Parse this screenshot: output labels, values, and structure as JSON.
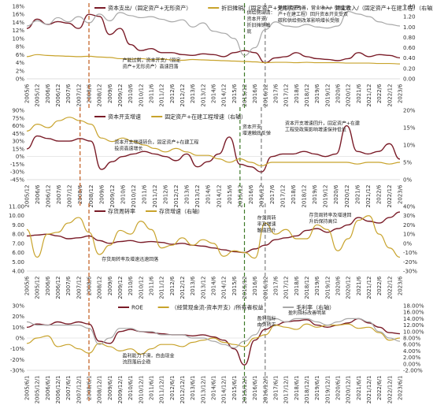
{
  "chart_data": [
    {
      "type": "line",
      "id": "p1",
      "x_labels": [
        "2005/6",
        "2005/12",
        "2006/6",
        "2006/12",
        "2007/6",
        "2007/12",
        "2008/6",
        "2008/12",
        "2009/6",
        "2009/12",
        "2010/6",
        "2010/12",
        "2011/6",
        "2011/12",
        "2012/6",
        "2012/12",
        "2013/6",
        "2013/12",
        "2014/6",
        "2014/12",
        "2015/6",
        "2015/12",
        "2016/6",
        "2016/12",
        "2017/6",
        "2017/12",
        "2018/6",
        "2018/12",
        "2019/6",
        "2019/12",
        "2020/6",
        "2020/12",
        "2021/6",
        "2021/12",
        "2022/6",
        "2022/12",
        "2023/6"
      ],
      "y_left": {
        "ticks": [
          "0%",
          "2%",
          "4%",
          "6%",
          "8%",
          "10%",
          "12%",
          "14%",
          "16%",
          "18%"
        ],
        "range": [
          0,
          18
        ]
      },
      "y_right": {
        "ticks": [
          "0.00",
          "0.20",
          "0.40",
          "0.60",
          "0.80",
          "1.00",
          "1.20",
          "1.40"
        ],
        "range": [
          0,
          1.4
        ]
      },
      "series": [
        {
          "name": "资本支出/（固定资产+无形资产）",
          "axis": "left",
          "color": "#7a1c28",
          "width": 1.4,
          "values": [
            12.5,
            14.8,
            13.5,
            14.2,
            13.8,
            12.5,
            16.0,
            15.5,
            11.0,
            12.5,
            8.5,
            7.0,
            7.5,
            6.5,
            6.5,
            6.0,
            5.8,
            6.2,
            6.0,
            5.5,
            6.5,
            7.0,
            6.5,
            4.0,
            5.2,
            5.5,
            6.5,
            5.5,
            5.0,
            4.8,
            4.5,
            5.0,
            6.5,
            5.5,
            6.0,
            5.8,
            5.2
          ]
        },
        {
          "name": "折旧摊销/（固定资产+无形资产）",
          "axis": "left",
          "color": "#c8a32c",
          "width": 1.2,
          "values": [
            5.5,
            6.0,
            5.8,
            5.7,
            5.6,
            5.5,
            5.6,
            5.4,
            5.3,
            5.0,
            4.9,
            5.0,
            4.8,
            4.9,
            4.7,
            4.6,
            4.8,
            4.7,
            4.6,
            4.5,
            4.4,
            4.3,
            4.2,
            4.0,
            4.1,
            4.1,
            4.0,
            4.1,
            4.0,
            4.0,
            4.0,
            3.9,
            3.9,
            3.9,
            3.8,
            3.8,
            3.7
          ]
        },
        {
          "name": "营业收入/（固定资产+在建工程）",
          "axis": "right",
          "color": "#a8a8a8",
          "width": 1.2,
          "values": [
            1.02,
            1.12,
            1.05,
            1.18,
            1.1,
            1.2,
            1.08,
            1.25,
            1.12,
            1.28,
            1.22,
            1.18,
            1.2,
            1.15,
            1.1,
            1.14,
            1.0,
            1.08,
            0.92,
            0.88,
            0.78,
            0.45,
            0.6,
            0.95,
            1.1,
            1.02,
            1.0,
            1.05,
            1.0,
            0.98,
            1.02,
            1.3,
            1.25,
            1.2,
            1.1,
            1.05,
            1.02
          ]
        }
      ],
      "dashed": [
        {
          "x": "2008/6",
          "color": "#c05a1c"
        },
        {
          "x": "2015/12",
          "color": "#3f7a2a"
        },
        {
          "x": "2016/12",
          "color": "#7f7f7f"
        }
      ],
      "legend": [
        {
          "label": "资本支出/（固定资产+无形资产）",
          "color": "#7a1c28"
        },
        {
          "label": "折旧摊销/（固定资产+无形资产）",
          "color": "#c8a32c"
        },
        {
          "label": "营业收入/（固定资产+在建工程）（右轴）",
          "color": "#a8a8a8"
        }
      ],
      "annotations": [
        {
          "lines": [
            "产能过剩，资本开支/（固定",
            "资产+无形资产）高速回落"
          ],
          "x": "2009/12",
          "y": 4.2
        },
        {
          "lines": [
            "供给侧出清：",
            "资本开支/",
            "折旧摊销触",
            "底"
          ],
          "x": "2015/12",
          "y": 16.0
        },
        {
          "lines": [
            "供给状况改善，营业收入/（固定资",
            "产+在建工程）回升资本开支受双",
            "碳和供给侧改革影响增长受限"
          ],
          "x": "2017/6",
          "y": 17.2
        }
      ]
    },
    {
      "type": "line",
      "id": "p2",
      "x_labels": [
        "2005/12",
        "2006/6",
        "2006/12",
        "2007/6",
        "2007/12",
        "2008/6",
        "2008/12",
        "2009/6",
        "2009/12",
        "2010/6",
        "2010/12",
        "2011/6",
        "2011/12",
        "2012/6",
        "2012/12",
        "2013/6",
        "2013/12",
        "2014/6",
        "2014/12",
        "2015/6",
        "2015/12",
        "2016/6",
        "2016/12",
        "2017/6",
        "2017/12",
        "2018/6",
        "2018/12",
        "2019/6",
        "2019/12",
        "2020/6",
        "2020/12",
        "2021/6",
        "2021/12",
        "2022/6",
        "2022/12",
        "2023/6"
      ],
      "y_left": {
        "ticks": [
          "-45%",
          "-30%",
          "-15%",
          "0%",
          "15%",
          "30%",
          "45%",
          "60%",
          "75%",
          "90%"
        ],
        "range": [
          -45,
          90
        ]
      },
      "y_right": {
        "ticks": [
          "0%",
          "5%",
          "10%",
          "15%",
          "20%"
        ],
        "range": [
          0,
          20
        ]
      },
      "series": [
        {
          "name": "资本开支增速",
          "axis": "left",
          "color": "#7a1c28",
          "width": 1.4,
          "values": [
            15,
            40,
            35,
            30,
            30,
            35,
            30,
            -25,
            -10,
            0,
            5,
            10,
            5,
            0,
            -8,
            5,
            -20,
            -10,
            5,
            38,
            -15,
            -20,
            -30,
            0,
            5,
            5,
            10,
            5,
            0,
            5,
            60,
            10,
            5,
            10,
            25,
            -5
          ]
        },
        {
          "name": "固定资产+在建工程增速（右轴）",
          "axis": "right",
          "color": "#c8a32c",
          "width": 1.2,
          "values": [
            14,
            16,
            15,
            17,
            18,
            17,
            16,
            12,
            11,
            12,
            11,
            10,
            9,
            8,
            9,
            8,
            7,
            7,
            6,
            5,
            6,
            5,
            4,
            5,
            5,
            5,
            5,
            5,
            5,
            5,
            5,
            4.5,
            5,
            5,
            4.5,
            5
          ]
        }
      ],
      "dashed": [
        {
          "x": "2008/6",
          "color": "#c05a1c"
        },
        {
          "x": "2015/12",
          "color": "#3f7a2a"
        },
        {
          "x": "2016/12",
          "color": "#7f7f7f"
        }
      ],
      "legend": [
        {
          "label": "资本开支增速",
          "color": "#7a1c28"
        },
        {
          "label": "固定资产+在建工程增速（右轴）",
          "color": "#c8a32c"
        }
      ],
      "annotations": [
        {
          "lines": [
            "资本开支增速转负，固定资产+在建工程",
            "投资高速增长"
          ],
          "x": "2009/12",
          "y": 25
        },
        {
          "lines": [
            "资本开支",
            "增速触底反弹"
          ],
          "x": "2015/12",
          "y": 55
        },
        {
          "lines": [
            "资本开支增速回升，固定资产+在建",
            "工程受政策影响增速保持低位"
          ],
          "x": "2017/12",
          "y": 62
        }
      ]
    },
    {
      "type": "line",
      "id": "p3",
      "x_labels": [
        "2005/6",
        "2005/12",
        "2006/6",
        "2006/12",
        "2007/6",
        "2007/12",
        "2008/6",
        "2008/12",
        "2009/6",
        "2009/12",
        "2010/6",
        "2010/12",
        "2011/6",
        "2011/12",
        "2012/6",
        "2012/12",
        "2013/6",
        "2013/12",
        "2014/6",
        "2014/12",
        "2015/6",
        "2015/12",
        "2016/6",
        "2016/12",
        "2017/6",
        "2017/12",
        "2018/6",
        "2018/12",
        "2019/6",
        "2019/12",
        "2020/6",
        "2020/12",
        "2021/6",
        "2021/12",
        "2022/6",
        "2022/12",
        "2023/6"
      ],
      "y_left": {
        "ticks": [
          "4.00",
          "5.00",
          "6.00",
          "7.00",
          "8.00",
          "9.00",
          "10.00",
          "11.00"
        ],
        "range": [
          4,
          11
        ]
      },
      "y_right": {
        "ticks": [
          "-30%",
          "-20%",
          "-10%",
          "0%",
          "10%",
          "20%",
          "30%",
          "40%"
        ],
        "range": [
          -30,
          40
        ]
      },
      "series": [
        {
          "name": "存货周转率",
          "axis": "left",
          "color": "#7a1c28",
          "width": 1.4,
          "values": [
            7.8,
            7.9,
            8.0,
            7.8,
            7.5,
            7.6,
            7.8,
            7.3,
            7.0,
            7.2,
            7.3,
            7.1,
            7.2,
            7.1,
            6.9,
            7.0,
            6.8,
            6.7,
            6.5,
            6.3,
            6.1,
            6.0,
            6.4,
            6.8,
            7.4,
            7.6,
            7.8,
            8.4,
            8.6,
            8.2,
            8.6,
            9.0,
            9.8,
            9.4,
            9.2,
            9.8,
            10.4
          ]
        },
        {
          "name": "存货增速（右轴）",
          "axis": "right",
          "color": "#c8a32c",
          "width": 1.2,
          "values": [
            15,
            -15,
            10,
            12,
            22,
            28,
            12,
            -12,
            -2,
            14,
            10,
            24,
            15,
            -5,
            -2,
            6,
            -2,
            4,
            0,
            -14,
            -8,
            -10,
            -16,
            22,
            10,
            15,
            5,
            5,
            20,
            15,
            -8,
            5,
            25,
            30,
            10,
            -5,
            -15
          ]
        }
      ],
      "dashed": [
        {
          "x": "2008/6",
          "color": "#c05a1c"
        },
        {
          "x": "2015/12",
          "color": "#3f7a2a"
        },
        {
          "x": "2016/12",
          "color": "#7f7f7f"
        }
      ],
      "legend": [
        {
          "label": "存货周转率",
          "color": "#7a1c28"
        },
        {
          "label": "存货增速（右轴）",
          "color": "#c8a32c"
        }
      ],
      "annotations": [
        {
          "lines": [
            "存货周转率及增速迅速回落"
          ],
          "x": "2008/12",
          "y": 5.1
        },
        {
          "lines": [
            "存货周转",
            "率及增速",
            "触底回升"
          ],
          "x": "2016/6",
          "y": 9.6
        },
        {
          "lines": [
            "存货周转率及增速回",
            "升后保持高位"
          ],
          "x": "2018/12",
          "y": 9.9
        }
      ]
    },
    {
      "type": "line",
      "id": "p4",
      "x_labels": [
        "2005/6/1",
        "2005/12/1",
        "2006/6/1",
        "2006/12/1",
        "2007/6/1",
        "2007/12/1",
        "2008/6/1",
        "2008/12/1",
        "2009/6/1",
        "2009/12/1",
        "2010/6/1",
        "2010/12/1",
        "2011/6/1",
        "2011/12/1",
        "2012/6/1",
        "2012/12/1",
        "2013/6/1",
        "2013/12/1",
        "2014/6/1",
        "2014/12/1",
        "2015/6/1",
        "2015/12/1",
        "2016/6/1",
        "2016/12/1",
        "2017/6/1",
        "2017/12/1",
        "2018/6/1",
        "2018/12/1",
        "2019/6/1",
        "2019/12/1",
        "2020/6/1",
        "2020/12/1",
        "2021/6/1",
        "2021/12/1",
        "2022/6/1",
        "2022/12/1",
        "2023/6/1"
      ],
      "y_left": {
        "ticks": [
          "-30%",
          "-20%",
          "-10%",
          "0%",
          "10%",
          "20%",
          "30%"
        ],
        "range": [
          -30,
          30
        ]
      },
      "y_right": {
        "ticks": [
          "-2.00%",
          "0.00%",
          "2.00%",
          "4.00%",
          "6.00%",
          "8.00%",
          "10.00%",
          "12.00%",
          "14.00%",
          "16.00%",
          "18.00%"
        ],
        "range": [
          -2,
          18
        ]
      },
      "series": [
        {
          "name": "ROE",
          "axis": "left",
          "color": "#7a1c28",
          "width": 1.4,
          "values": [
            10,
            13,
            12,
            15,
            13,
            15,
            13,
            -3,
            -5,
            6,
            8,
            6,
            5,
            4,
            3,
            3,
            2,
            3,
            1,
            -2,
            -10,
            -25,
            -2,
            8,
            12,
            15,
            16,
            17,
            12,
            10,
            12,
            14,
            18,
            14,
            10,
            5,
            4
          ]
        },
        {
          "name": "（经营现金流-资本开支）/所有者权益",
          "axis": "left",
          "color": "#c8a32c",
          "width": 1.2,
          "values": [
            -5,
            0,
            2,
            -8,
            -6,
            -10,
            -14,
            -5,
            -8,
            -12,
            -10,
            -15,
            -10,
            -6,
            -6,
            -8,
            -4,
            -2,
            0,
            -4,
            -6,
            -8,
            0,
            3,
            12,
            10,
            8,
            13,
            10,
            12,
            12,
            13,
            9,
            10,
            5,
            -2,
            0
          ]
        },
        {
          "name": "毛利率（右轴）",
          "axis": "right",
          "color": "#a8a8a8",
          "width": 1.2,
          "values": [
            13,
            12,
            12,
            12,
            12,
            12,
            11,
            6,
            8,
            11,
            11,
            10,
            10,
            9,
            9,
            9,
            8,
            8,
            7,
            6,
            5,
            7,
            9,
            13,
            14,
            13,
            14,
            14,
            13,
            12,
            13,
            14,
            14,
            13,
            10,
            8,
            7
          ]
        }
      ],
      "dashed": [
        {
          "x": "2008/6/1",
          "color": "#c05a1c"
        },
        {
          "x": "2015/12/1",
          "color": "#3f7a2a"
        },
        {
          "x": "2016/12/1",
          "color": "#7f7f7f"
        }
      ],
      "legend": [
        {
          "label": "ROE",
          "color": "#7a1c28"
        },
        {
          "label": "（经营现金流-资本开支）/所有者权益",
          "color": "#c8a32c"
        },
        {
          "label": "毛利率（右轴）",
          "color": "#a8a8a8"
        }
      ],
      "annotations": [
        {
          "lines": [
            "盈利能力下滑，自由现金",
            "流回落后企稳"
          ],
          "x": "2009/12/1",
          "y": -18
        },
        {
          "lines": [
            "盈利指标",
            "由负转正"
          ],
          "x": "2016/6/1",
          "y": 17
        },
        {
          "lines": [
            "盈利指标改善明显"
          ],
          "x": "2017/12/1",
          "y": 22
        }
      ]
    }
  ]
}
